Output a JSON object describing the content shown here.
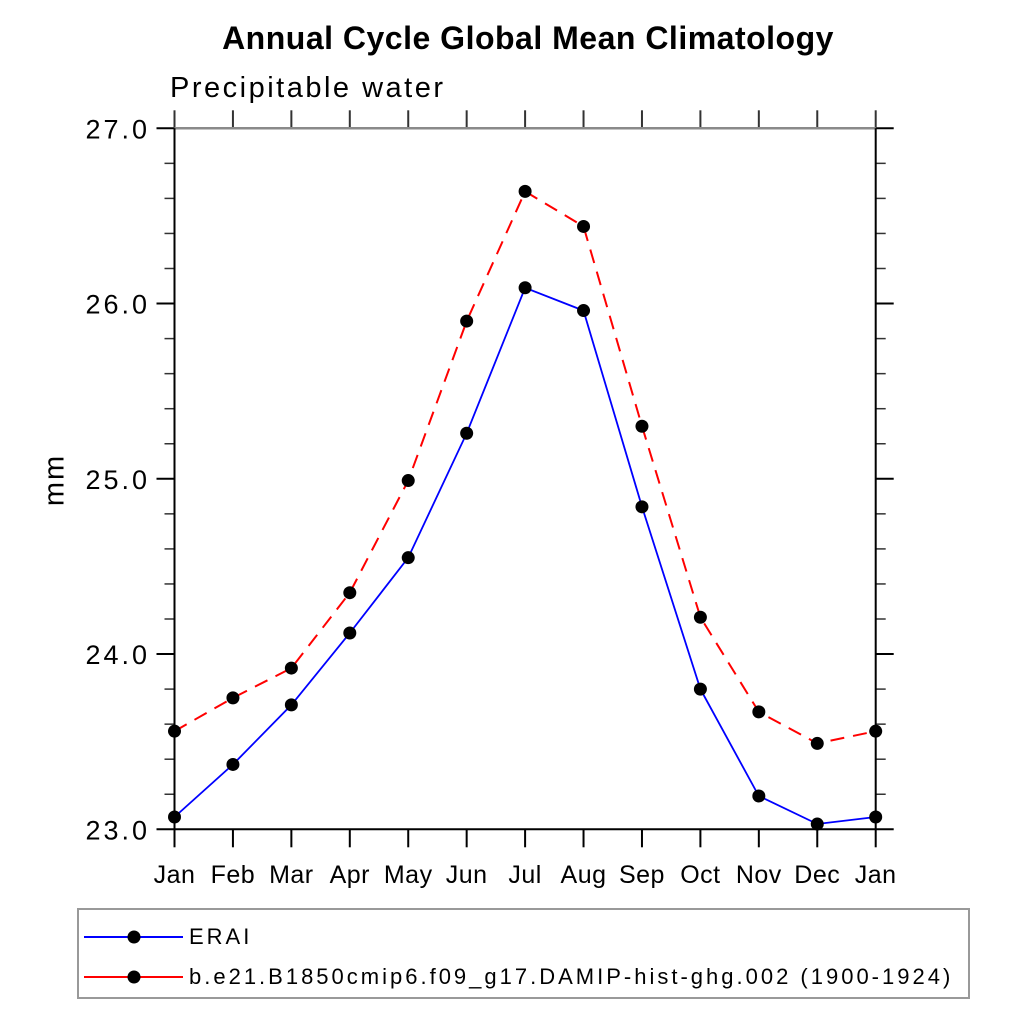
{
  "chart_data": {
    "type": "line",
    "title": "Annual Cycle Global Mean Climatology",
    "subtitle": "Precipitable water",
    "ylabel": "mm",
    "xlabel": "",
    "categories": [
      "Jan",
      "Feb",
      "Mar",
      "Apr",
      "May",
      "Jun",
      "Jul",
      "Aug",
      "Sep",
      "Oct",
      "Nov",
      "Dec",
      "Jan"
    ],
    "ylim": [
      23.0,
      27.0
    ],
    "y_major_ticks": [
      23.0,
      24.0,
      25.0,
      26.0,
      27.0
    ],
    "y_tick_labels": [
      "23.0",
      "24.0",
      "25.0",
      "26.0",
      "27.0"
    ],
    "y_minor_step": 0.2,
    "grid": false,
    "legend_position": "bottom-left-box",
    "axis_color": "#000000",
    "top_frame_color": "#8a8a8a",
    "minor_tick_color": "#333333",
    "marker_color": "#000000",
    "series": [
      {
        "name": "ERAI",
        "color": "#0000ff",
        "line_style": "solid",
        "marker": "circle",
        "values": [
          23.07,
          23.37,
          23.71,
          24.12,
          24.55,
          25.26,
          26.09,
          25.96,
          24.84,
          23.8,
          23.19,
          23.03,
          23.07
        ]
      },
      {
        "name": "b.e21.B1850cmip6.f09_g17.DAMIP-hist-ghg.002 (1900-1924)",
        "color": "#ff0000",
        "line_style": "dashed",
        "marker": "circle",
        "values": [
          23.56,
          23.75,
          23.92,
          24.35,
          24.99,
          25.9,
          26.64,
          26.44,
          25.3,
          24.21,
          23.67,
          23.49,
          23.56
        ]
      }
    ]
  }
}
